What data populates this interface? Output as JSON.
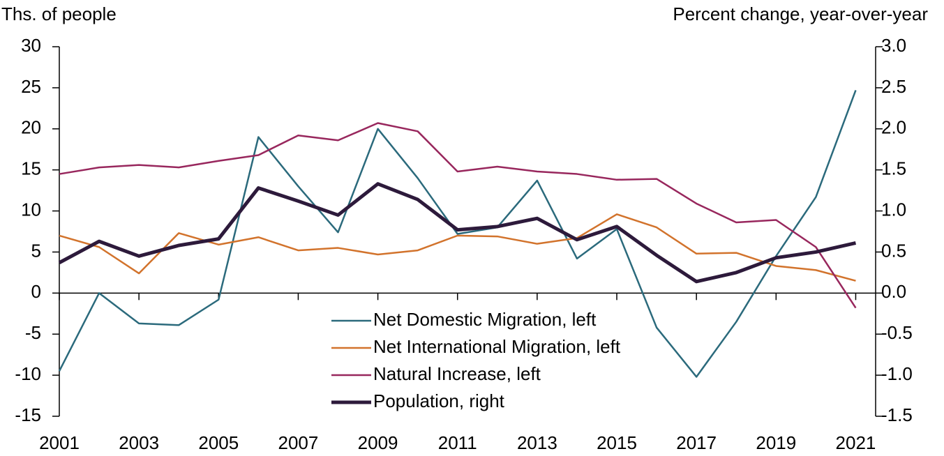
{
  "chart_data": {
    "type": "line",
    "ylabel": "Ths. of people",
    "y2label": "Percent change, year-over-year",
    "x": [
      2001,
      2002,
      2003,
      2004,
      2005,
      2006,
      2007,
      2008,
      2009,
      2010,
      2011,
      2012,
      2013,
      2014,
      2015,
      2016,
      2017,
      2018,
      2019,
      2020,
      2021
    ],
    "xlim": [
      2001,
      2021.5
    ],
    "xticks": [
      2001,
      2003,
      2005,
      2007,
      2009,
      2011,
      2013,
      2015,
      2017,
      2019,
      2021
    ],
    "ylim": [
      -15,
      30
    ],
    "yticks": [
      -15,
      -10,
      -5,
      0,
      5,
      10,
      15,
      20,
      25,
      30
    ],
    "y2lim": [
      -1.5,
      3.0
    ],
    "y2ticks": [
      -1.5,
      {
        "value": -1.0,
        "label": "-1.0"
      },
      -0.5,
      {
        "value": 0.0,
        "label": "0.0"
      },
      0.5,
      {
        "value": 1.0,
        "label": "1.0"
      },
      1.5,
      {
        "value": 2.0,
        "label": "2.0"
      },
      2.5,
      {
        "value": 3.0,
        "label": "3.0"
      }
    ],
    "grid": false,
    "series": [
      {
        "name": "Net Domestic Migration, left",
        "color": "#2b6a7c",
        "values": [
          -9.5,
          0,
          -3.7,
          -3.9,
          -0.8,
          19,
          13,
          7.4,
          20,
          14,
          7.2,
          8,
          13.7,
          4.2,
          7.8,
          -4.2,
          -10.2,
          -3.5,
          4.5,
          11.7,
          24.7
        ]
      },
      {
        "name": "Net International Migration, left",
        "color": "#d2732c",
        "values": [
          7,
          5.6,
          2.4,
          7.3,
          5.9,
          6.8,
          5.2,
          5.5,
          4.7,
          5.2,
          7.0,
          6.9,
          6.0,
          6.7,
          9.6,
          8.0,
          4.8,
          4.9,
          3.3,
          2.8,
          1.5
        ]
      },
      {
        "name": "Natural Increase, left",
        "color": "#98275d",
        "values": [
          14.5,
          15.3,
          15.6,
          15.3,
          16.1,
          16.8,
          19.2,
          18.6,
          20.7,
          19.7,
          14.8,
          15.4,
          14.8,
          14.5,
          13.8,
          13.9,
          10.9,
          8.6,
          8.9,
          5.6,
          -1.8
        ]
      },
      {
        "name": "Population, right",
        "color": "#2d1a3b",
        "axis": "y2",
        "values": [
          0.37,
          0.63,
          0.45,
          0.58,
          0.66,
          1.28,
          1.12,
          0.95,
          1.33,
          1.14,
          0.77,
          0.81,
          0.91,
          0.65,
          0.81,
          0.46,
          0.14,
          0.25,
          0.43,
          0.5,
          0.61
        ]
      }
    ]
  }
}
